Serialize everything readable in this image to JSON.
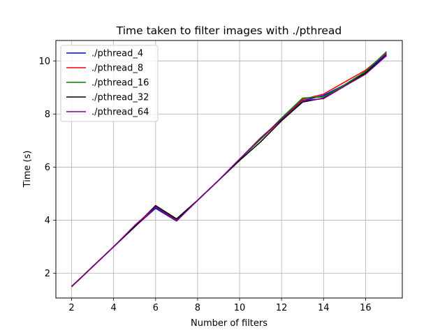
{
  "chart_data": {
    "type": "line",
    "title": "Time taken to filter images with ./pthread",
    "xlabel": "Number of filters",
    "ylabel": "Time (s)",
    "x": [
      2,
      3,
      4,
      5,
      6,
      7,
      8,
      9,
      10,
      11,
      12,
      13,
      14,
      15,
      16,
      17
    ],
    "xlim": [
      1.25,
      17.75
    ],
    "ylim": [
      1.07,
      10.77
    ],
    "xticks": [
      2,
      4,
      6,
      8,
      10,
      12,
      14,
      16
    ],
    "yticks": [
      2,
      4,
      6,
      8,
      10
    ],
    "grid": true,
    "legend_position": "top-left",
    "series": [
      {
        "name": "./pthread_4",
        "color": "#0000ff",
        "values": [
          1.5,
          2.25,
          3.0,
          3.75,
          4.45,
          3.97,
          4.75,
          5.5,
          6.3,
          7.05,
          7.8,
          8.5,
          8.7,
          9.1,
          9.6,
          10.25
        ]
      },
      {
        "name": "./pthread_8",
        "color": "#ff0000",
        "values": [
          1.5,
          2.25,
          3.0,
          3.75,
          4.5,
          4.0,
          4.75,
          5.5,
          6.3,
          7.05,
          7.8,
          8.55,
          8.75,
          9.2,
          9.65,
          10.3
        ]
      },
      {
        "name": "./pthread_16",
        "color": "#008000",
        "values": [
          1.5,
          2.25,
          3.0,
          3.75,
          4.55,
          4.05,
          4.75,
          5.5,
          6.3,
          7.05,
          7.85,
          8.6,
          8.65,
          9.1,
          9.6,
          10.35
        ]
      },
      {
        "name": "./pthread_32",
        "color": "#000000",
        "values": [
          1.5,
          2.25,
          3.0,
          3.75,
          4.55,
          4.05,
          4.75,
          5.5,
          6.25,
          6.95,
          7.75,
          8.45,
          8.6,
          9.05,
          9.55,
          10.2
        ]
      },
      {
        "name": "./pthread_64",
        "color": "#800080",
        "values": [
          1.5,
          2.25,
          3.0,
          3.8,
          4.5,
          3.98,
          4.75,
          5.5,
          6.3,
          7.1,
          7.8,
          8.5,
          8.58,
          9.05,
          9.5,
          10.2
        ]
      }
    ]
  }
}
